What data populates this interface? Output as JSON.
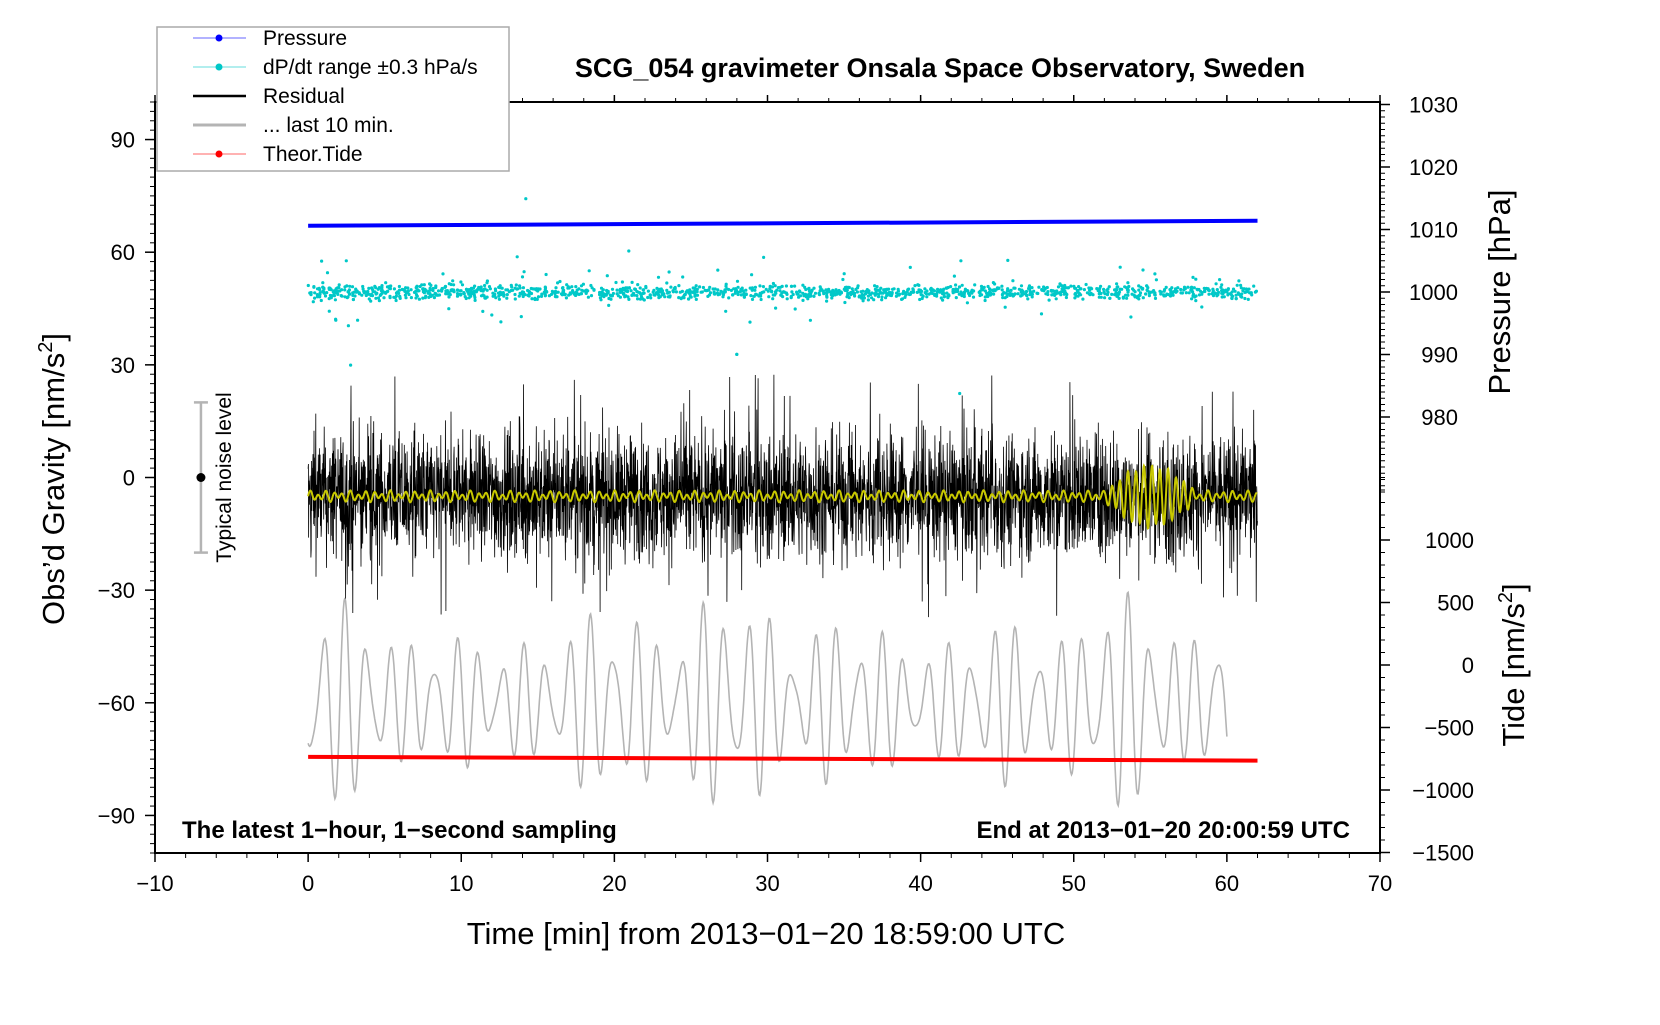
{
  "chart_data": {
    "type": "line",
    "title": "SCG_054 gravimeter Onsala Space Observatory, Sweden",
    "xlabel": "Time [min] from 2013−01−20 18:59:00 UTC",
    "ylabel_left": {
      "main": "Obs’d Gravity [nm/s",
      "sup": "2",
      "end": "]"
    },
    "ylabel_right_pressure": "Pressure [hPa]",
    "ylabel_right_tide": {
      "main": "Tide [nm/s",
      "sup": "2",
      "end": "]"
    },
    "xlim": [
      -10,
      70
    ],
    "ylim_left": [
      -100,
      100
    ],
    "ylim_pressure": [
      970,
      1030.5
    ],
    "ylim_tide": [
      -1500,
      1500
    ],
    "x_ticks": [
      "−10",
      "0",
      "10",
      "20",
      "30",
      "40",
      "50",
      "60",
      "70"
    ],
    "x_tick_values": [
      -10,
      0,
      10,
      20,
      30,
      40,
      50,
      60,
      70
    ],
    "left_ticks": [
      "90",
      "60",
      "30",
      "0",
      "−30",
      "−60",
      "−90"
    ],
    "left_tick_values": [
      90,
      60,
      30,
      0,
      -30,
      -60,
      -90
    ],
    "pressure_ticks": [
      "1030",
      "1020",
      "1010",
      "1000",
      "990",
      "980"
    ],
    "pressure_tick_values": [
      1030,
      1020,
      1010,
      1000,
      990,
      980
    ],
    "tide_ticks": [
      "1000",
      "500",
      "0",
      "−500",
      "−1000",
      "−1500"
    ],
    "tide_tick_values": [
      1000,
      500,
      0,
      -500,
      -1000,
      -1500
    ],
    "legend": {
      "placement": "top-left",
      "entries": [
        {
          "label": "Pressure",
          "color": "#0000ff",
          "marker": true,
          "line_color": "#6666ff"
        },
        {
          "label": "dP/dt range ±0.3 hPa/s",
          "color": "#00c8c8",
          "marker": true,
          "line_color": "#66dddd"
        },
        {
          "label": "Residual",
          "color": "#000000",
          "marker": false,
          "line_color": "#000000"
        },
        {
          "label": "... last 10 min.",
          "color": "#b4b4b4",
          "marker": false,
          "line_color": "#b4b4b4"
        },
        {
          "label": "Theor.Tide",
          "color": "#ff0000",
          "marker": true,
          "line_color": "#ff6666"
        }
      ]
    },
    "noise_bar": {
      "label": "Typical noise level",
      "x": -7,
      "center": 0,
      "halfwidth": 20,
      "color": "#b4b4b4"
    },
    "annotations": {
      "left": "The latest 1−hour, 1−second sampling",
      "right": "End at 2013−01−20 20:00:59 UTC"
    },
    "series": [
      {
        "name": "Pressure",
        "axis": "pressure",
        "color": "#0000ff",
        "x_range": [
          0,
          62
        ],
        "start": 1010.6,
        "end": 1011.4
      },
      {
        "name": "dP/dt",
        "axis": "pressure",
        "color": "#00c8c8",
        "x_range": [
          0,
          62
        ],
        "center": 1000,
        "typical_spread": 0.6,
        "max_outlier": 18
      },
      {
        "name": "Residual",
        "axis": "left",
        "color": "#000000",
        "x_range": [
          0,
          62
        ],
        "mean": -5,
        "typical_amplitude": 15,
        "max_amplitude": 33,
        "sample_interval_s": 1
      },
      {
        "name": "Residual smoothed",
        "axis": "left",
        "color": "#c8c800",
        "x_range": [
          0,
          62
        ],
        "mean": -5,
        "amplitude": 1,
        "burst_range": [
          52,
          58
        ],
        "burst_amplitude": 7
      },
      {
        "name": "... last 10 min.",
        "axis": "left",
        "color": "#b4b4b4",
        "x_range": [
          0,
          60
        ],
        "mean": -60,
        "min": -93,
        "max": -30
      },
      {
        "name": "Theor.Tide",
        "axis": "tide",
        "color": "#ff0000",
        "x_range": [
          0,
          62
        ],
        "start": -735,
        "end": -765
      }
    ]
  }
}
